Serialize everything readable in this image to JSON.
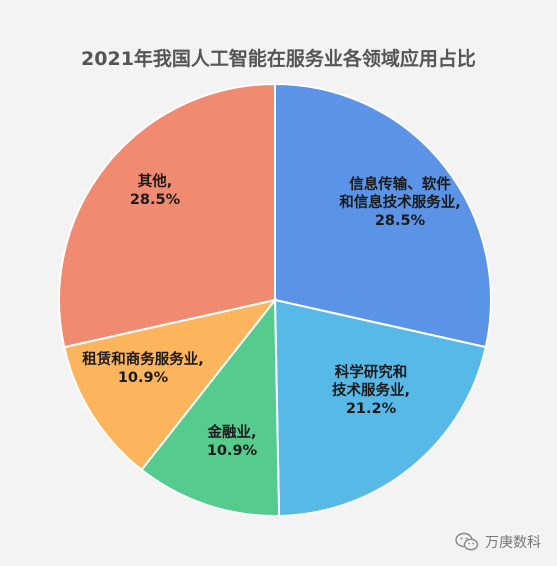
{
  "chart_data": {
    "type": "pie",
    "title": "2021年我国人工智能在服务业各领域应用占比",
    "slices": [
      {
        "label_lines": [
          "信息传输、软件",
          "和信息技术服务业,",
          "28.5%"
        ],
        "value": 28.5,
        "color": "#5b93e7"
      },
      {
        "label_lines": [
          "科学研究和",
          "技术服务业,",
          "21.2%"
        ],
        "value": 21.2,
        "color": "#57b9e8"
      },
      {
        "label_lines": [
          "金融业,",
          "10.9%"
        ],
        "value": 10.9,
        "color": "#56cb8e"
      },
      {
        "label_lines": [
          "租赁和商务服务业,",
          "10.9%"
        ],
        "value": 10.9,
        "color": "#fdb55d"
      },
      {
        "label_lines": [
          "其他,",
          "28.5%"
        ],
        "value": 28.5,
        "color": "#f08b71"
      }
    ]
  },
  "watermark": {
    "text": "万庚数科",
    "icon": "wechat-icon"
  }
}
